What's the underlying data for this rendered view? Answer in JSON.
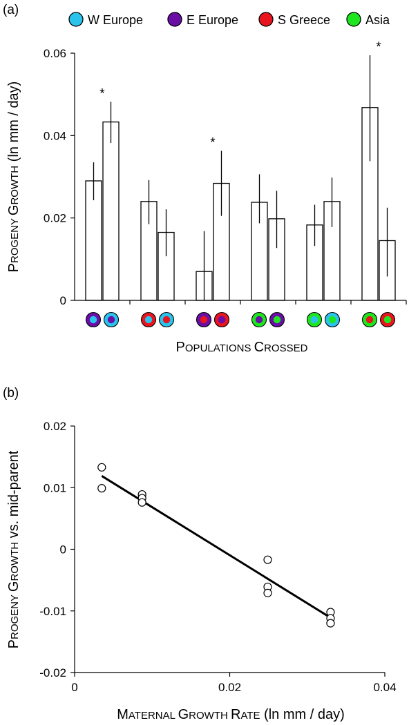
{
  "colors": {
    "W Europe": "#29c3ec",
    "E Europe": "#6a0ea6",
    "S Greece": "#e8141e",
    "Asia": "#1ee61e",
    "stroke": "#000000",
    "background": "#ffffff"
  },
  "chart_data": [
    {
      "panel": "(a)",
      "type": "bar",
      "legend": [
        "W Europe",
        "E Europe",
        "S Greece",
        "Asia"
      ],
      "legend_position": "top",
      "ylabel": {
        "first": "P",
        "rest": "ROGENY ",
        "first2": "G",
        "rest2": "ROWTH",
        "units": " (ln mm / day)"
      },
      "xlabel": {
        "first": "P",
        "rest": "OPULATIONS ",
        "first2": "C",
        "rest2": "ROSSED"
      },
      "ylim": [
        0,
        0.06
      ],
      "yticks": [
        {
          "value": 0,
          "label": "0"
        },
        {
          "value": 0.02,
          "label": "0.02"
        },
        {
          "value": 0.04,
          "label": "0.04"
        },
        {
          "value": 0.06,
          "label": "0.06"
        }
      ],
      "grid": false,
      "categories": [
        {
          "left": {
            "ring": "E Europe",
            "fill": "W Europe"
          },
          "right": {
            "ring": "W Europe",
            "fill": "E Europe"
          }
        },
        {
          "left": {
            "ring": "S Greece",
            "fill": "W Europe"
          },
          "right": {
            "ring": "W Europe",
            "fill": "S Greece"
          }
        },
        {
          "left": {
            "ring": "E Europe",
            "fill": "S Greece"
          },
          "right": {
            "ring": "S Greece",
            "fill": "E Europe"
          }
        },
        {
          "left": {
            "ring": "Asia",
            "fill": "E Europe"
          },
          "right": {
            "ring": "E Europe",
            "fill": "Asia"
          }
        },
        {
          "left": {
            "ring": "Asia",
            "fill": "W Europe"
          },
          "right": {
            "ring": "W Europe",
            "fill": "Asia"
          }
        },
        {
          "left": {
            "ring": "Asia",
            "fill": "S Greece"
          },
          "right": {
            "ring": "S Greece",
            "fill": "Asia"
          }
        }
      ],
      "series": [
        {
          "values": [
            0.029,
            0.024,
            0.007,
            0.0238,
            0.0183,
            0.0468
          ],
          "err_low": [
            0.0243,
            0.0185,
            0.0,
            0.0187,
            0.0132,
            0.0338
          ],
          "err_high": [
            0.0335,
            0.0292,
            0.0168,
            0.0306,
            0.0232,
            0.0595
          ]
        },
        {
          "values": [
            0.0433,
            0.0165,
            0.0284,
            0.0198,
            0.024,
            0.0145
          ],
          "err_low": [
            0.0382,
            0.0107,
            0.0205,
            0.0127,
            0.0178,
            0.0058
          ],
          "err_high": [
            0.0482,
            0.0221,
            0.0363,
            0.0266,
            0.0298,
            0.0225
          ]
        }
      ],
      "significance_marker": "*",
      "significant_groups": [
        0,
        2,
        5
      ]
    },
    {
      "panel": "(b)",
      "type": "scatter",
      "ylabel": {
        "first": "P",
        "rest": "ROGENY ",
        "first2": "G",
        "rest2": "ROWTH",
        "units": " vs. mid-parent"
      },
      "xlabel": {
        "first": "M",
        "rest": "ATERNAL ",
        "first2": "G",
        "rest2": "ROWTH ",
        "first3": "R",
        "rest3": "ATE",
        "units": " (ln mm / day)"
      },
      "xlim": [
        0,
        0.04
      ],
      "ylim": [
        -0.02,
        0.02
      ],
      "xticks": [
        {
          "value": 0,
          "label": "0"
        },
        {
          "value": 0.02,
          "label": "0.02"
        },
        {
          "value": 0.04,
          "label": "0.04"
        }
      ],
      "yticks": [
        {
          "value": -0.02,
          "label": "-0.02"
        },
        {
          "value": -0.01,
          "label": "-0.01"
        },
        {
          "value": 0,
          "label": "0"
        },
        {
          "value": 0.01,
          "label": "0.01"
        },
        {
          "value": 0.02,
          "label": "0.02"
        }
      ],
      "grid": false,
      "points": [
        {
          "x": 0.0035,
          "y": 0.0133
        },
        {
          "x": 0.0035,
          "y": 0.0099
        },
        {
          "x": 0.0087,
          "y": 0.0089
        },
        {
          "x": 0.0087,
          "y": 0.0083
        },
        {
          "x": 0.0087,
          "y": 0.0076
        },
        {
          "x": 0.0249,
          "y": -0.0017
        },
        {
          "x": 0.0249,
          "y": -0.0061
        },
        {
          "x": 0.0249,
          "y": -0.0071
        },
        {
          "x": 0.033,
          "y": -0.0102
        },
        {
          "x": 0.033,
          "y": -0.0112
        },
        {
          "x": 0.033,
          "y": -0.012
        }
      ],
      "fit_line": {
        "x": [
          0.0035,
          0.033
        ],
        "y": [
          0.0119,
          -0.0111
        ]
      }
    }
  ]
}
